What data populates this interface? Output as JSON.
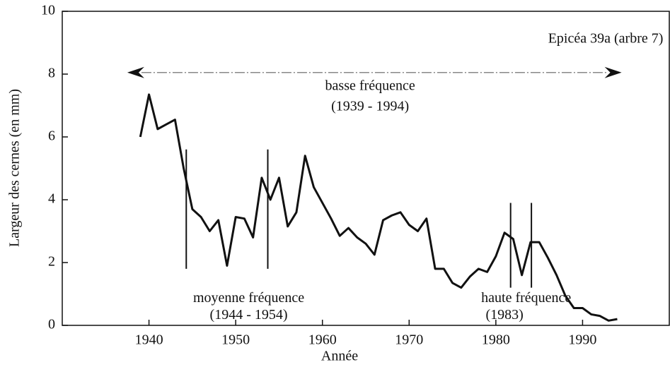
{
  "chart_data": {
    "type": "line",
    "x_label": "Année",
    "y_label": "Largeur des cernes (en mm)",
    "x": [
      1939,
      1940,
      1941,
      1942,
      1943,
      1944,
      1945,
      1946,
      1947,
      1948,
      1949,
      1950,
      1951,
      1952,
      1953,
      1954,
      1955,
      1956,
      1957,
      1958,
      1959,
      1960,
      1961,
      1962,
      1963,
      1964,
      1965,
      1966,
      1967,
      1968,
      1969,
      1970,
      1971,
      1972,
      1973,
      1974,
      1975,
      1976,
      1977,
      1978,
      1979,
      1980,
      1981,
      1982,
      1983,
      1984,
      1985,
      1986,
      1987,
      1988,
      1989,
      1990,
      1991,
      1992,
      1993,
      1994
    ],
    "series": [
      {
        "color": "#111111",
        "values": [
          6.0,
          7.35,
          6.25,
          6.4,
          6.55,
          5.0,
          3.7,
          3.45,
          3.0,
          3.35,
          1.9,
          3.45,
          3.4,
          2.8,
          4.7,
          4.0,
          4.7,
          3.15,
          3.6,
          5.4,
          4.4,
          3.9,
          3.4,
          2.85,
          3.1,
          2.8,
          2.6,
          2.25,
          3.35,
          3.5,
          3.6,
          3.2,
          3.0,
          3.4,
          1.8,
          1.8,
          1.35,
          1.2,
          1.55,
          1.8,
          1.7,
          2.2,
          2.95,
          2.75,
          1.6,
          2.65,
          2.65,
          2.15,
          1.6,
          0.95,
          0.55,
          0.55,
          0.35,
          0.3,
          0.15,
          0.2
        ]
      }
    ],
    "xlim": [
      1930,
      2000
    ],
    "xticks": [
      1940,
      1950,
      1960,
      1970,
      1980,
      1990
    ],
    "ylim": [
      0,
      10
    ],
    "yticks": [
      0,
      2,
      4,
      6,
      8,
      10
    ],
    "vlines": [
      {
        "x": 1944.3,
        "y": [
          1.8,
          5.6
        ]
      },
      {
        "x": 1953.7,
        "y": [
          1.8,
          5.6
        ]
      },
      {
        "x": 1981.7,
        "y": [
          1.2,
          3.9
        ]
      },
      {
        "x": 1984.1,
        "y": [
          1.2,
          3.9
        ]
      }
    ],
    "arrow": {
      "x": [
        1937.5,
        1994.5
      ],
      "y": 8.05
    },
    "annotations": [
      {
        "text": "Epicéa 39a (arbre 7)",
        "x": 1999.3,
        "y": 9.1,
        "anchor": "end"
      },
      {
        "text": "basse fréquence",
        "x": 1965.5,
        "y": 7.6,
        "anchor": "middle"
      },
      {
        "text": "(1939 - 1994)",
        "x": 1965.5,
        "y": 6.95,
        "anchor": "middle"
      },
      {
        "text": "moyenne fréquence",
        "x": 1951.5,
        "y": 0.85,
        "anchor": "middle"
      },
      {
        "text": "(1944 - 1954)",
        "x": 1951.5,
        "y": 0.3,
        "anchor": "middle"
      },
      {
        "text": "haute fréquence",
        "x": 1983.5,
        "y": 0.85,
        "anchor": "middle"
      },
      {
        "text": "(1983)",
        "x": 1981,
        "y": 0.3,
        "anchor": "middle"
      }
    ]
  }
}
